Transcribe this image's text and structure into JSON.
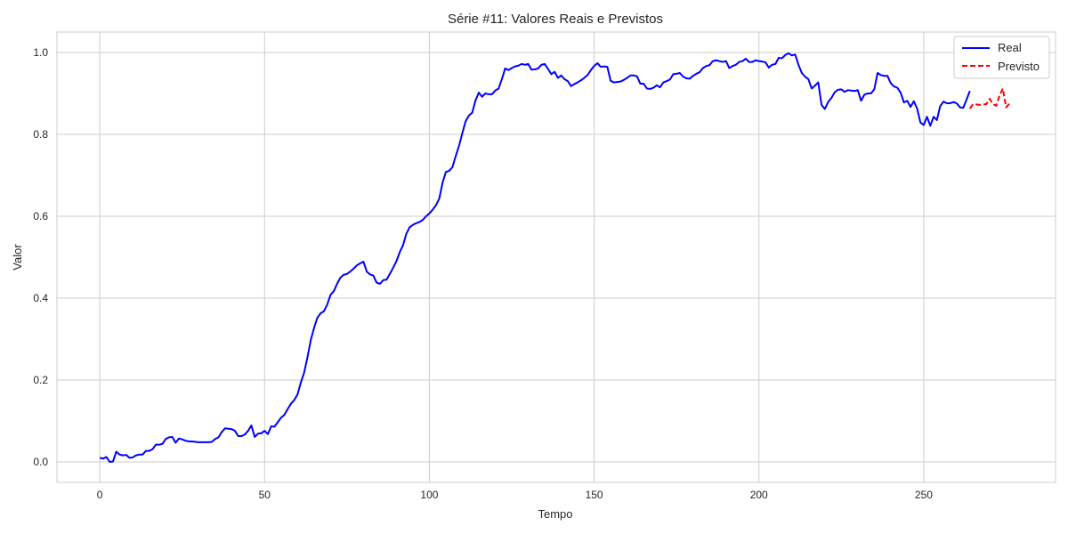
{
  "chart_data": {
    "type": "line",
    "title": "Série #11: Valores Reais e Previstos",
    "xlabel": "Tempo",
    "ylabel": "Valor",
    "xlim": [
      -13,
      290
    ],
    "ylim": [
      -0.05,
      1.05
    ],
    "xticks": [
      0,
      50,
      100,
      150,
      200,
      250
    ],
    "yticks": [
      0.0,
      0.2,
      0.4,
      0.6,
      0.8,
      1.0
    ],
    "xtick_labels": [
      "0",
      "50",
      "100",
      "150",
      "200",
      "250"
    ],
    "ytick_labels": [
      "0.0",
      "0.2",
      "0.4",
      "0.6",
      "0.8",
      "1.0"
    ],
    "grid": true,
    "legend_position": "top-right",
    "series": [
      {
        "name": "Real",
        "color": "#0000ff",
        "style": "solid",
        "x_start": 0,
        "values": [
          0.01,
          0.008,
          0.012,
          0.0,
          0.001,
          0.025,
          0.018,
          0.016,
          0.017,
          0.01,
          0.011,
          0.016,
          0.018,
          0.018,
          0.027,
          0.027,
          0.031,
          0.042,
          0.042,
          0.044,
          0.056,
          0.06,
          0.061,
          0.047,
          0.057,
          0.055,
          0.052,
          0.05,
          0.05,
          0.049,
          0.048,
          0.048,
          0.048,
          0.048,
          0.049,
          0.056,
          0.06,
          0.073,
          0.082,
          0.081,
          0.08,
          0.076,
          0.063,
          0.063,
          0.067,
          0.076,
          0.089,
          0.061,
          0.069,
          0.07,
          0.076,
          0.068,
          0.087,
          0.086,
          0.097,
          0.108,
          0.115,
          0.129,
          0.142,
          0.151,
          0.165,
          0.194,
          0.218,
          0.255,
          0.297,
          0.327,
          0.352,
          0.363,
          0.368,
          0.384,
          0.408,
          0.417,
          0.435,
          0.45,
          0.457,
          0.459,
          0.465,
          0.472,
          0.48,
          0.485,
          0.489,
          0.465,
          0.458,
          0.455,
          0.438,
          0.435,
          0.444,
          0.445,
          0.459,
          0.474,
          0.49,
          0.512,
          0.529,
          0.557,
          0.573,
          0.579,
          0.583,
          0.586,
          0.591,
          0.6,
          0.607,
          0.616,
          0.627,
          0.643,
          0.682,
          0.708,
          0.711,
          0.72,
          0.747,
          0.772,
          0.803,
          0.832,
          0.846,
          0.853,
          0.883,
          0.902,
          0.892,
          0.9,
          0.898,
          0.898,
          0.907,
          0.912,
          0.935,
          0.961,
          0.957,
          0.962,
          0.966,
          0.968,
          0.972,
          0.97,
          0.972,
          0.958,
          0.959,
          0.961,
          0.97,
          0.972,
          0.96,
          0.947,
          0.953,
          0.938,
          0.944,
          0.935,
          0.93,
          0.918,
          0.923,
          0.927,
          0.932,
          0.938,
          0.945,
          0.957,
          0.967,
          0.974,
          0.965,
          0.966,
          0.965,
          0.931,
          0.927,
          0.928,
          0.929,
          0.933,
          0.938,
          0.944,
          0.944,
          0.942,
          0.924,
          0.924,
          0.912,
          0.911,
          0.914,
          0.92,
          0.915,
          0.927,
          0.93,
          0.934,
          0.947,
          0.948,
          0.95,
          0.941,
          0.937,
          0.936,
          0.943,
          0.948,
          0.952,
          0.962,
          0.967,
          0.969,
          0.979,
          0.981,
          0.979,
          0.977,
          0.979,
          0.962,
          0.967,
          0.97,
          0.977,
          0.979,
          0.985,
          0.977,
          0.977,
          0.981,
          0.979,
          0.978,
          0.976,
          0.963,
          0.97,
          0.972,
          0.987,
          0.986,
          0.994,
          0.998,
          0.993,
          0.995,
          0.97,
          0.95,
          0.941,
          0.935,
          0.912,
          0.919,
          0.927,
          0.872,
          0.862,
          0.879,
          0.889,
          0.903,
          0.909,
          0.91,
          0.904,
          0.908,
          0.907,
          0.906,
          0.908,
          0.882,
          0.897,
          0.9,
          0.9,
          0.91,
          0.95,
          0.945,
          0.943,
          0.943,
          0.925,
          0.917,
          0.914,
          0.902,
          0.878,
          0.882,
          0.867,
          0.881,
          0.863,
          0.829,
          0.823,
          0.843,
          0.821,
          0.843,
          0.835,
          0.869,
          0.88,
          0.876,
          0.876,
          0.879,
          0.876,
          0.866,
          0.865,
          0.885,
          0.906
        ]
      },
      {
        "name": "Previsto",
        "color": "#ff0000",
        "style": "dashed",
        "x_start": 264,
        "values": [
          0.863,
          0.874,
          0.873,
          0.872,
          0.873,
          0.874,
          0.887,
          0.874,
          0.87,
          0.895,
          0.912,
          0.866,
          0.875
        ]
      }
    ]
  }
}
